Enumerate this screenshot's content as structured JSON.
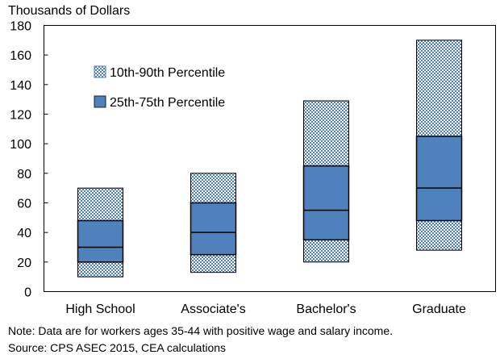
{
  "chart_data": {
    "type": "bar",
    "subtype": "floating-range-boxplot",
    "ylabel": "Thousands of Dollars",
    "ylim": [
      0,
      180
    ],
    "yticks": [
      0,
      20,
      40,
      60,
      80,
      100,
      120,
      140,
      160,
      180
    ],
    "grid": false,
    "legend_position": "top-left",
    "categories": [
      "High School",
      "Associate's",
      "Bachelor's",
      "Graduate"
    ],
    "series": [
      {
        "name": "10th-90th Percentile",
        "color": "#4a7ebb",
        "pattern": "checkered",
        "ranges": [
          [
            10,
            70
          ],
          [
            13,
            80
          ],
          [
            20,
            129
          ],
          [
            28,
            170
          ]
        ]
      },
      {
        "name": "25th-75th Percentile",
        "color": "#4f81bd",
        "ranges": [
          [
            20,
            48
          ],
          [
            25,
            60
          ],
          [
            35,
            85
          ],
          [
            48,
            105
          ]
        ]
      }
    ],
    "median": [
      30,
      40,
      55,
      70
    ]
  },
  "notes": [
    "Note: Data are for workers ages 35-44 with positive wage and salary income.",
    "Source: CPS ASEC 2015, CEA calculations"
  ]
}
